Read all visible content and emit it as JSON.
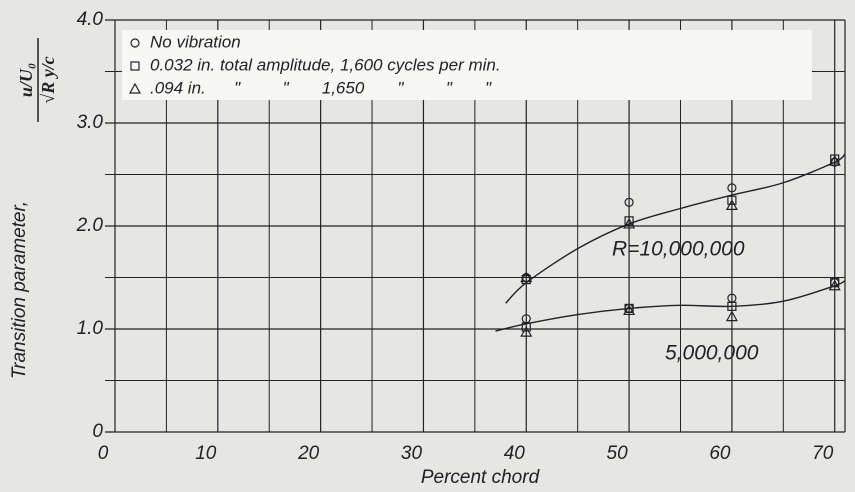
{
  "chart_data": {
    "type": "scatter",
    "xlabel": "Percent chord",
    "ylabel": "Transition parameter,",
    "ylabel_fraction": {
      "numerator": "u/U₀",
      "denominator": "√R y/c"
    },
    "xlim": [
      0,
      71
    ],
    "ylim": [
      0,
      4
    ],
    "xticks": [
      0,
      10,
      20,
      30,
      40,
      50,
      60,
      70
    ],
    "yticks": [
      0,
      {
        "value": 1,
        "label": "1.0"
      },
      {
        "value": 2,
        "label": "2.0"
      },
      {
        "value": 3,
        "label": "3.0"
      },
      {
        "value": 4,
        "label": "4.0"
      }
    ],
    "grid": true,
    "minor_grid": true,
    "legend": "upper left",
    "color": "#222222",
    "series": [
      {
        "name": "No vibration",
        "marker": "circle",
        "x": [
          40,
          50,
          60,
          70,
          40,
          50,
          60,
          70
        ],
        "values": [
          1.5,
          2.23,
          2.37,
          2.62,
          1.1,
          1.2,
          1.3,
          1.45
        ]
      },
      {
        "name": "0.032 in. total amplitude, 1,600 cycles per min.",
        "marker": "square",
        "x": [
          40,
          50,
          60,
          70,
          40,
          50,
          60,
          70
        ],
        "values": [
          1.48,
          2.05,
          2.25,
          2.65,
          1.02,
          1.2,
          1.22,
          1.45
        ]
      },
      {
        "name": ".094 in.      \"         \"       1,650       \"         \"       \"",
        "marker": "triangle",
        "x": [
          40,
          50,
          60,
          70,
          40,
          50,
          60,
          70
        ],
        "values": [
          1.5,
          2.02,
          2.2,
          2.63,
          0.97,
          1.18,
          1.12,
          1.42
        ]
      }
    ],
    "curves": [
      {
        "label": "R=10,000,000",
        "x": [
          38,
          40,
          45,
          50,
          55,
          60,
          65,
          70,
          71
        ],
        "values": [
          1.25,
          1.45,
          1.78,
          2.02,
          2.17,
          2.3,
          2.42,
          2.62,
          2.7
        ]
      },
      {
        "label": "5,000,000",
        "x": [
          37,
          40,
          45,
          50,
          55,
          60,
          65,
          70,
          71
        ],
        "values": [
          0.98,
          1.05,
          1.14,
          1.2,
          1.23,
          1.22,
          1.27,
          1.42,
          1.47
        ]
      }
    ]
  }
}
